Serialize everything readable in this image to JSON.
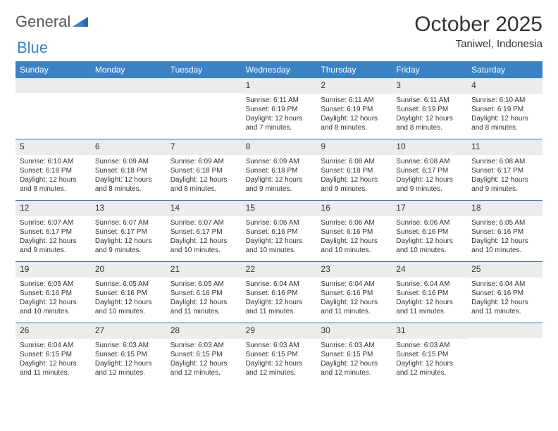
{
  "logo": {
    "text1": "General",
    "text2": "Blue"
  },
  "title": "October 2025",
  "location": "Taniwel, Indonesia",
  "colors": {
    "header_bg": "#3b82c4",
    "header_text": "#ffffff",
    "daynum_bg": "#ececec",
    "week_border": "#3b72a8",
    "text": "#333333",
    "background": "#ffffff"
  },
  "fonts": {
    "title_size": 30,
    "location_size": 15,
    "weekday_size": 12,
    "daynum_size": 12,
    "body_size": 10
  },
  "weekdays": [
    "Sunday",
    "Monday",
    "Tuesday",
    "Wednesday",
    "Thursday",
    "Friday",
    "Saturday"
  ],
  "weeks": [
    [
      {
        "empty": true
      },
      {
        "empty": true
      },
      {
        "empty": true
      },
      {
        "day": "1",
        "sunrise": "6:11 AM",
        "sunset": "6:19 PM",
        "daylight": "12 hours and 7 minutes."
      },
      {
        "day": "2",
        "sunrise": "6:11 AM",
        "sunset": "6:19 PM",
        "daylight": "12 hours and 8 minutes."
      },
      {
        "day": "3",
        "sunrise": "6:11 AM",
        "sunset": "6:19 PM",
        "daylight": "12 hours and 8 minutes."
      },
      {
        "day": "4",
        "sunrise": "6:10 AM",
        "sunset": "6:19 PM",
        "daylight": "12 hours and 8 minutes."
      }
    ],
    [
      {
        "day": "5",
        "sunrise": "6:10 AM",
        "sunset": "6:18 PM",
        "daylight": "12 hours and 8 minutes."
      },
      {
        "day": "6",
        "sunrise": "6:09 AM",
        "sunset": "6:18 PM",
        "daylight": "12 hours and 8 minutes."
      },
      {
        "day": "7",
        "sunrise": "6:09 AM",
        "sunset": "6:18 PM",
        "daylight": "12 hours and 8 minutes."
      },
      {
        "day": "8",
        "sunrise": "6:09 AM",
        "sunset": "6:18 PM",
        "daylight": "12 hours and 9 minutes."
      },
      {
        "day": "9",
        "sunrise": "6:08 AM",
        "sunset": "6:18 PM",
        "daylight": "12 hours and 9 minutes."
      },
      {
        "day": "10",
        "sunrise": "6:08 AM",
        "sunset": "6:17 PM",
        "daylight": "12 hours and 9 minutes."
      },
      {
        "day": "11",
        "sunrise": "6:08 AM",
        "sunset": "6:17 PM",
        "daylight": "12 hours and 9 minutes."
      }
    ],
    [
      {
        "day": "12",
        "sunrise": "6:07 AM",
        "sunset": "6:17 PM",
        "daylight": "12 hours and 9 minutes."
      },
      {
        "day": "13",
        "sunrise": "6:07 AM",
        "sunset": "6:17 PM",
        "daylight": "12 hours and 9 minutes."
      },
      {
        "day": "14",
        "sunrise": "6:07 AM",
        "sunset": "6:17 PM",
        "daylight": "12 hours and 10 minutes."
      },
      {
        "day": "15",
        "sunrise": "6:06 AM",
        "sunset": "6:16 PM",
        "daylight": "12 hours and 10 minutes."
      },
      {
        "day": "16",
        "sunrise": "6:06 AM",
        "sunset": "6:16 PM",
        "daylight": "12 hours and 10 minutes."
      },
      {
        "day": "17",
        "sunrise": "6:06 AM",
        "sunset": "6:16 PM",
        "daylight": "12 hours and 10 minutes."
      },
      {
        "day": "18",
        "sunrise": "6:05 AM",
        "sunset": "6:16 PM",
        "daylight": "12 hours and 10 minutes."
      }
    ],
    [
      {
        "day": "19",
        "sunrise": "6:05 AM",
        "sunset": "6:16 PM",
        "daylight": "12 hours and 10 minutes."
      },
      {
        "day": "20",
        "sunrise": "6:05 AM",
        "sunset": "6:16 PM",
        "daylight": "12 hours and 10 minutes."
      },
      {
        "day": "21",
        "sunrise": "6:05 AM",
        "sunset": "6:16 PM",
        "daylight": "12 hours and 11 minutes."
      },
      {
        "day": "22",
        "sunrise": "6:04 AM",
        "sunset": "6:16 PM",
        "daylight": "12 hours and 11 minutes."
      },
      {
        "day": "23",
        "sunrise": "6:04 AM",
        "sunset": "6:16 PM",
        "daylight": "12 hours and 11 minutes."
      },
      {
        "day": "24",
        "sunrise": "6:04 AM",
        "sunset": "6:16 PM",
        "daylight": "12 hours and 11 minutes."
      },
      {
        "day": "25",
        "sunrise": "6:04 AM",
        "sunset": "6:16 PM",
        "daylight": "12 hours and 11 minutes."
      }
    ],
    [
      {
        "day": "26",
        "sunrise": "6:04 AM",
        "sunset": "6:15 PM",
        "daylight": "12 hours and 11 minutes."
      },
      {
        "day": "27",
        "sunrise": "6:03 AM",
        "sunset": "6:15 PM",
        "daylight": "12 hours and 12 minutes."
      },
      {
        "day": "28",
        "sunrise": "6:03 AM",
        "sunset": "6:15 PM",
        "daylight": "12 hours and 12 minutes."
      },
      {
        "day": "29",
        "sunrise": "6:03 AM",
        "sunset": "6:15 PM",
        "daylight": "12 hours and 12 minutes."
      },
      {
        "day": "30",
        "sunrise": "6:03 AM",
        "sunset": "6:15 PM",
        "daylight": "12 hours and 12 minutes."
      },
      {
        "day": "31",
        "sunrise": "6:03 AM",
        "sunset": "6:15 PM",
        "daylight": "12 hours and 12 minutes."
      },
      {
        "empty": true
      }
    ]
  ],
  "labels": {
    "sunrise": "Sunrise: ",
    "sunset": "Sunset: ",
    "daylight": "Daylight: "
  }
}
